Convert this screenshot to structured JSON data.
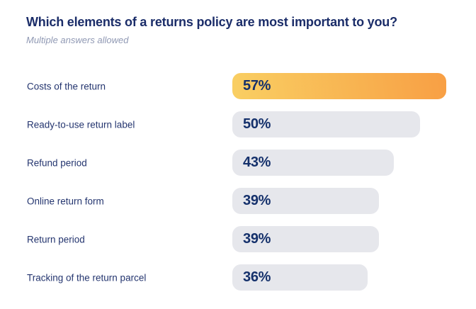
{
  "colors": {
    "background": "#ffffff",
    "title_text": "#1b2d69",
    "subtitle_text": "#9099b4",
    "label_text": "#24356f",
    "value_text": "#14306b",
    "bar_background": "#e6e7ec",
    "highlight_gradient_start": "#f9cf63",
    "highlight_gradient_end": "#f89f44"
  },
  "chart_data": {
    "type": "bar",
    "orientation": "horizontal",
    "title": "Which elements of a returns policy are most important to you?",
    "subtitle": "Multiple answers allowed",
    "categories": [
      "Costs of the return",
      "Ready-to-use return label",
      "Refund period",
      "Online return form",
      "Return period",
      "Tracking of the return parcel"
    ],
    "values": [
      57,
      50,
      43,
      39,
      39,
      36
    ],
    "unit": "%",
    "value_labels": [
      "57%",
      "50%",
      "43%",
      "39%",
      "39%",
      "36%"
    ],
    "highlighted_index": 0,
    "xlim": [
      0,
      65
    ],
    "grid": false,
    "legend": "none"
  }
}
